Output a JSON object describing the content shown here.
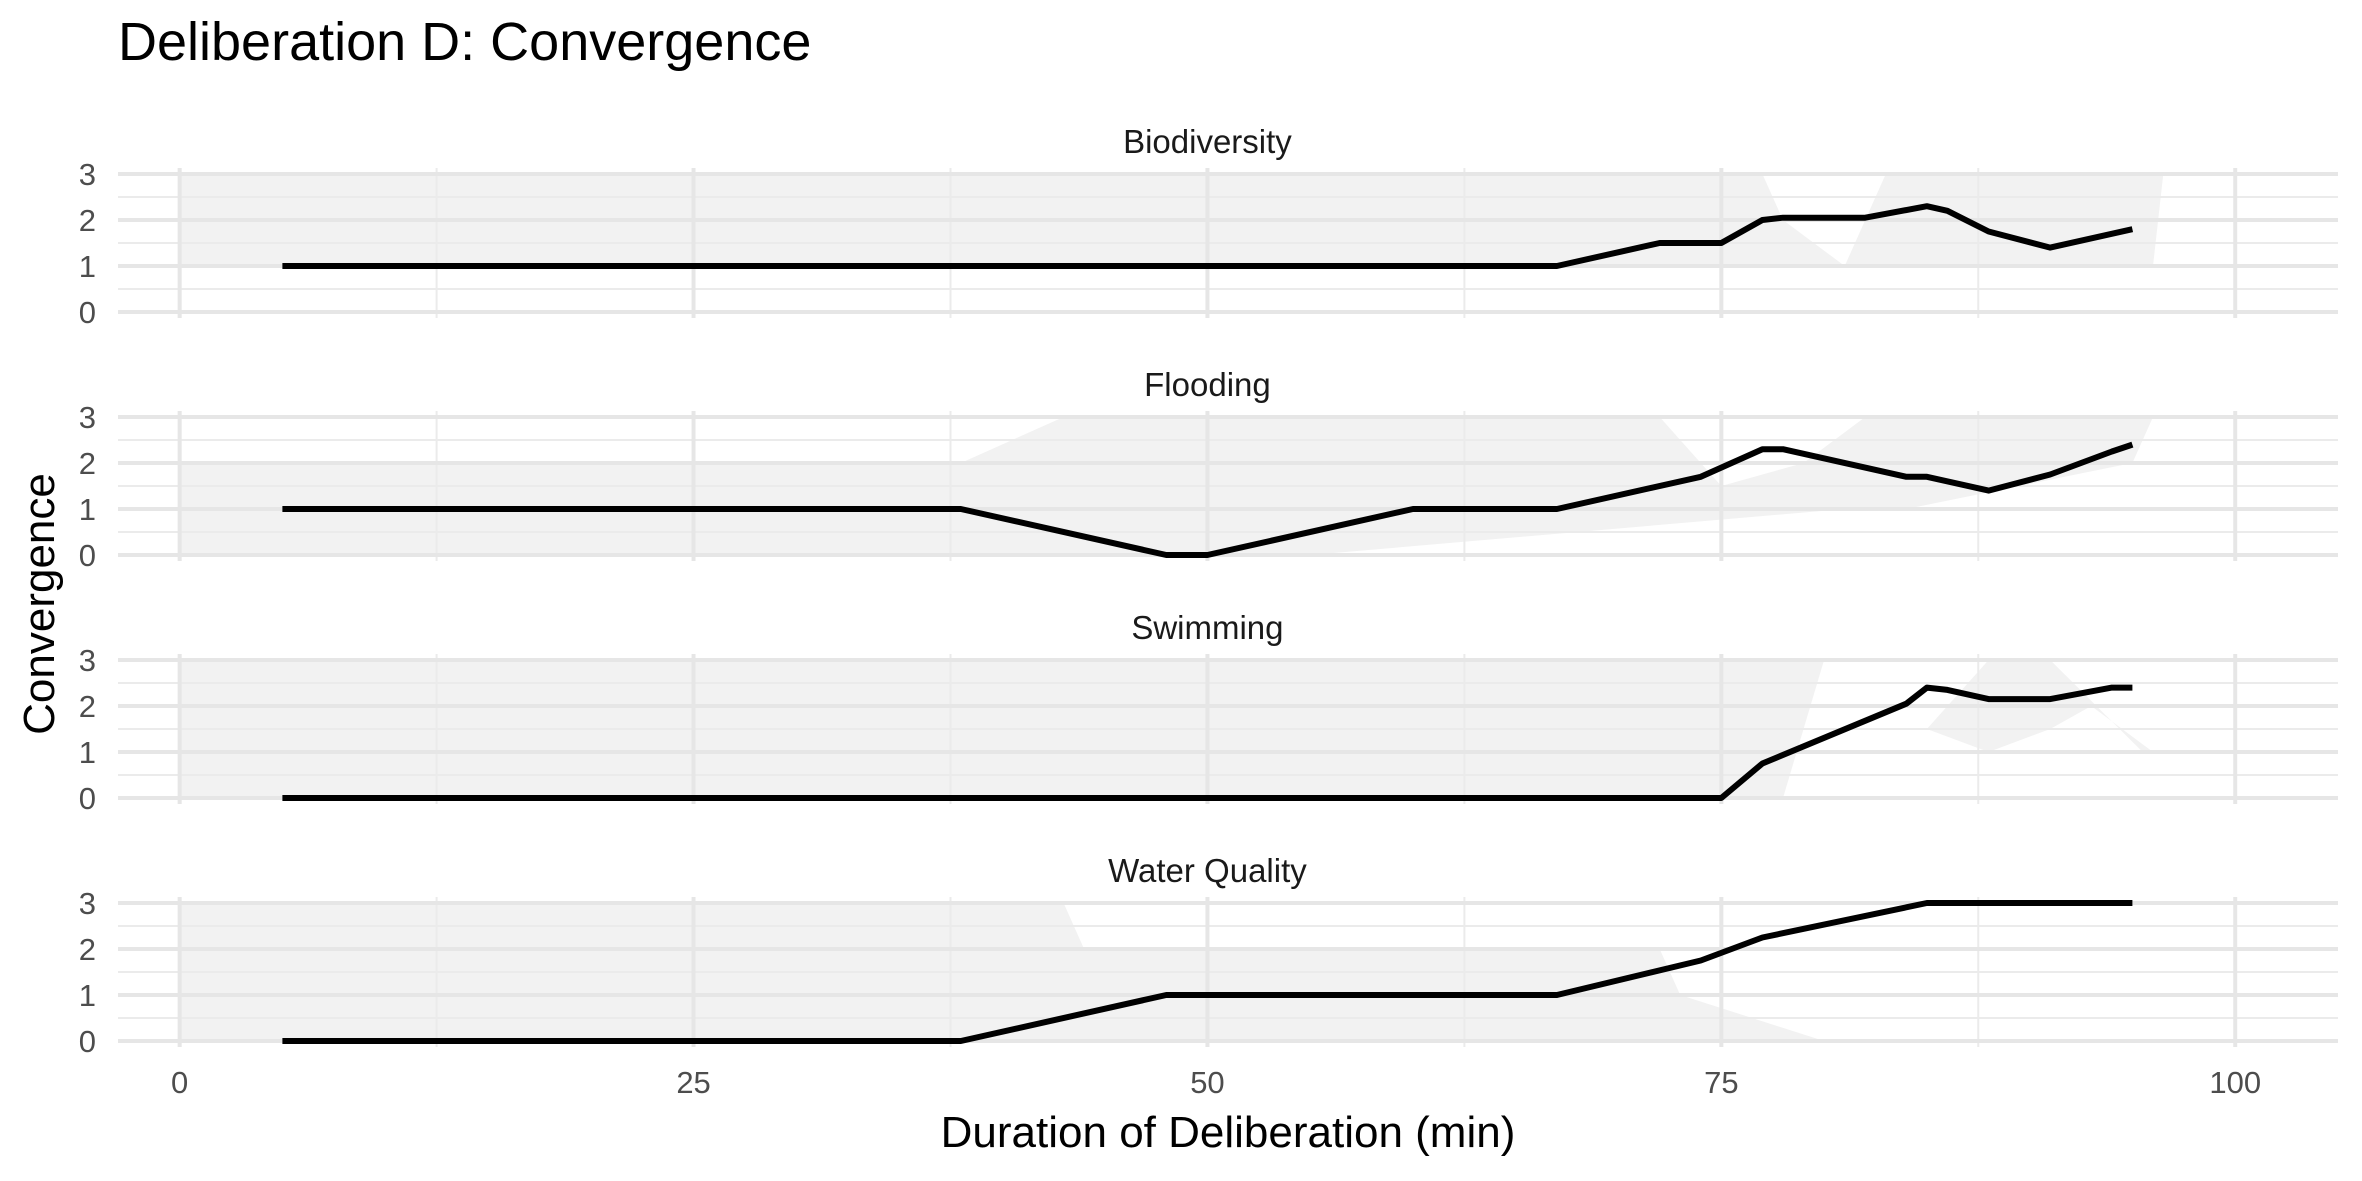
{
  "chart_data": {
    "type": "line",
    "title": "Deliberation D: Convergence",
    "xlabel": "Duration of Deliberation (min)",
    "ylabel": "Convergence",
    "xlim": [
      -3,
      105
    ],
    "ylim": [
      0,
      3
    ],
    "x_ticks": [
      0,
      25,
      50,
      75,
      100
    ],
    "y_ticks": [
      0,
      1,
      2,
      3
    ],
    "grid": true,
    "line_color": "#000000",
    "shade_color": "#f2f2f2",
    "panels": [
      {
        "name": "Biodiversity",
        "series": [
          {
            "x": [
              5,
              67,
              72,
              75,
              77,
              78,
              82,
              85,
              86,
              88,
              91,
              95
            ],
            "y": [
              1,
              1,
              1.5,
              1.5,
              2,
              2.05,
              2.05,
              2.3,
              2.2,
              1.75,
              1.4,
              1.8
            ]
          }
        ],
        "shade": [
          {
            "x": [
              0,
              72,
              74,
              77,
              78,
              81,
              83,
              96.5,
              96,
              0
            ],
            "y": [
              3,
              3,
              3,
              3,
              2,
              1,
              3,
              3,
              1,
              1
            ]
          }
        ]
      },
      {
        "name": "Flooding",
        "series": [
          {
            "x": [
              5,
              38,
              48,
              50,
              60,
              67,
              74,
              77,
              78,
              84,
              85,
              88,
              91,
              94,
              95
            ],
            "y": [
              1,
              1,
              0,
              0,
              1,
              1,
              1.7,
              2.3,
              2.3,
              1.7,
              1.7,
              1.4,
              1.75,
              2.25,
              2.4
            ]
          }
        ],
        "shade": [
          {
            "x": [
              0,
              38,
              43,
              72,
              75,
              79,
              82,
              96,
              95,
              84,
              81,
              55,
              0
            ],
            "y": [
              2,
              2,
              3,
              3,
              1.5,
              2,
              3,
              3,
              2,
              1,
              1,
              0,
              0
            ]
          }
        ]
      },
      {
        "name": "Swimming",
        "series": [
          {
            "x": [
              5,
              75,
              77,
              84,
              85,
              86,
              88,
              91,
              94,
              95
            ],
            "y": [
              0,
              0,
              0.75,
              2.05,
              2.4,
              2.35,
              2.15,
              2.15,
              2.4,
              2.4
            ]
          }
        ],
        "shade": [
          {
            "x": [
              0,
              80,
              78,
              0
            ],
            "y": [
              3,
              3,
              0,
              0
            ]
          },
          {
            "x": [
              85,
              88,
              91,
              93,
              96,
              95.5,
              91,
              88
            ],
            "y": [
              1.5,
              1,
              1.5,
              2,
              1,
              1,
              3,
              3
            ]
          }
        ]
      },
      {
        "name": "Water Quality",
        "series": [
          {
            "x": [
              5,
              38,
              48,
              50,
              67,
              74,
              77,
              85,
              95
            ],
            "y": [
              0,
              0,
              1,
              1,
              1,
              1.75,
              2.25,
              3,
              3
            ]
          }
        ],
        "shade": [
          {
            "x": [
              0,
              43,
              44,
              72,
              73,
              80,
              0
            ],
            "y": [
              3,
              3,
              2,
              2,
              1,
              0,
              0
            ]
          }
        ]
      }
    ]
  }
}
